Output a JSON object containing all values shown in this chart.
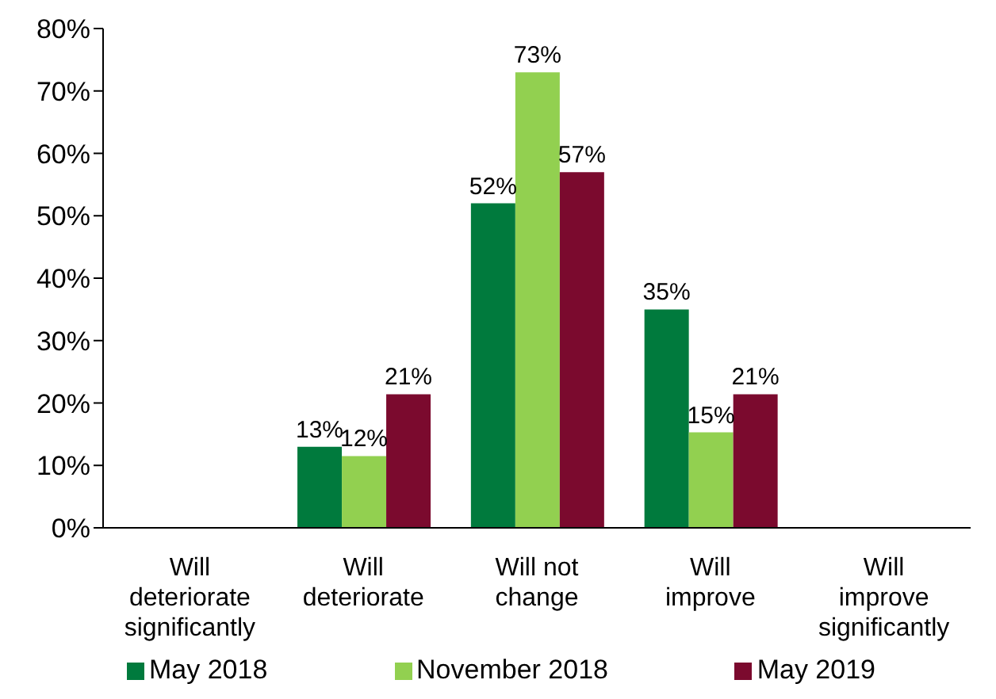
{
  "chart_data": {
    "type": "bar",
    "categories": [
      "Will\ndeteriorate\nsignificantly",
      "Will\ndeteriorate",
      "Will not\nchange",
      "Will\nimprove",
      "Will\nimprove\nsignificantly"
    ],
    "series": [
      {
        "name": "May 2018",
        "color": "#007a3d",
        "values": [
          0,
          13,
          52,
          35,
          0
        ],
        "value_labels": [
          null,
          "13%",
          "52%",
          "35%",
          null
        ]
      },
      {
        "name": "November 2018",
        "color": "#92d050",
        "values": [
          0,
          11.5,
          73,
          15.3,
          0
        ],
        "value_labels": [
          null,
          "12%",
          "73%",
          "15%",
          null
        ]
      },
      {
        "name": "May 2019",
        "color": "#7b0a2e",
        "values": [
          0,
          21.4,
          57,
          21.4,
          0
        ],
        "value_labels": [
          null,
          "21%",
          "57%",
          "21%",
          null
        ]
      }
    ],
    "ylim": [
      0,
      80
    ],
    "yticks": [
      {
        "value": 0,
        "label": "0%"
      },
      {
        "value": 10,
        "label": "10%"
      },
      {
        "value": 20,
        "label": "20%"
      },
      {
        "value": 30,
        "label": "30%"
      },
      {
        "value": 40,
        "label": "40%"
      },
      {
        "value": 50,
        "label": "50%"
      },
      {
        "value": 60,
        "label": "60%"
      },
      {
        "value": 70,
        "label": "70%"
      },
      {
        "value": 80,
        "label": "80%"
      }
    ],
    "grid": false,
    "legend": "bottom"
  }
}
